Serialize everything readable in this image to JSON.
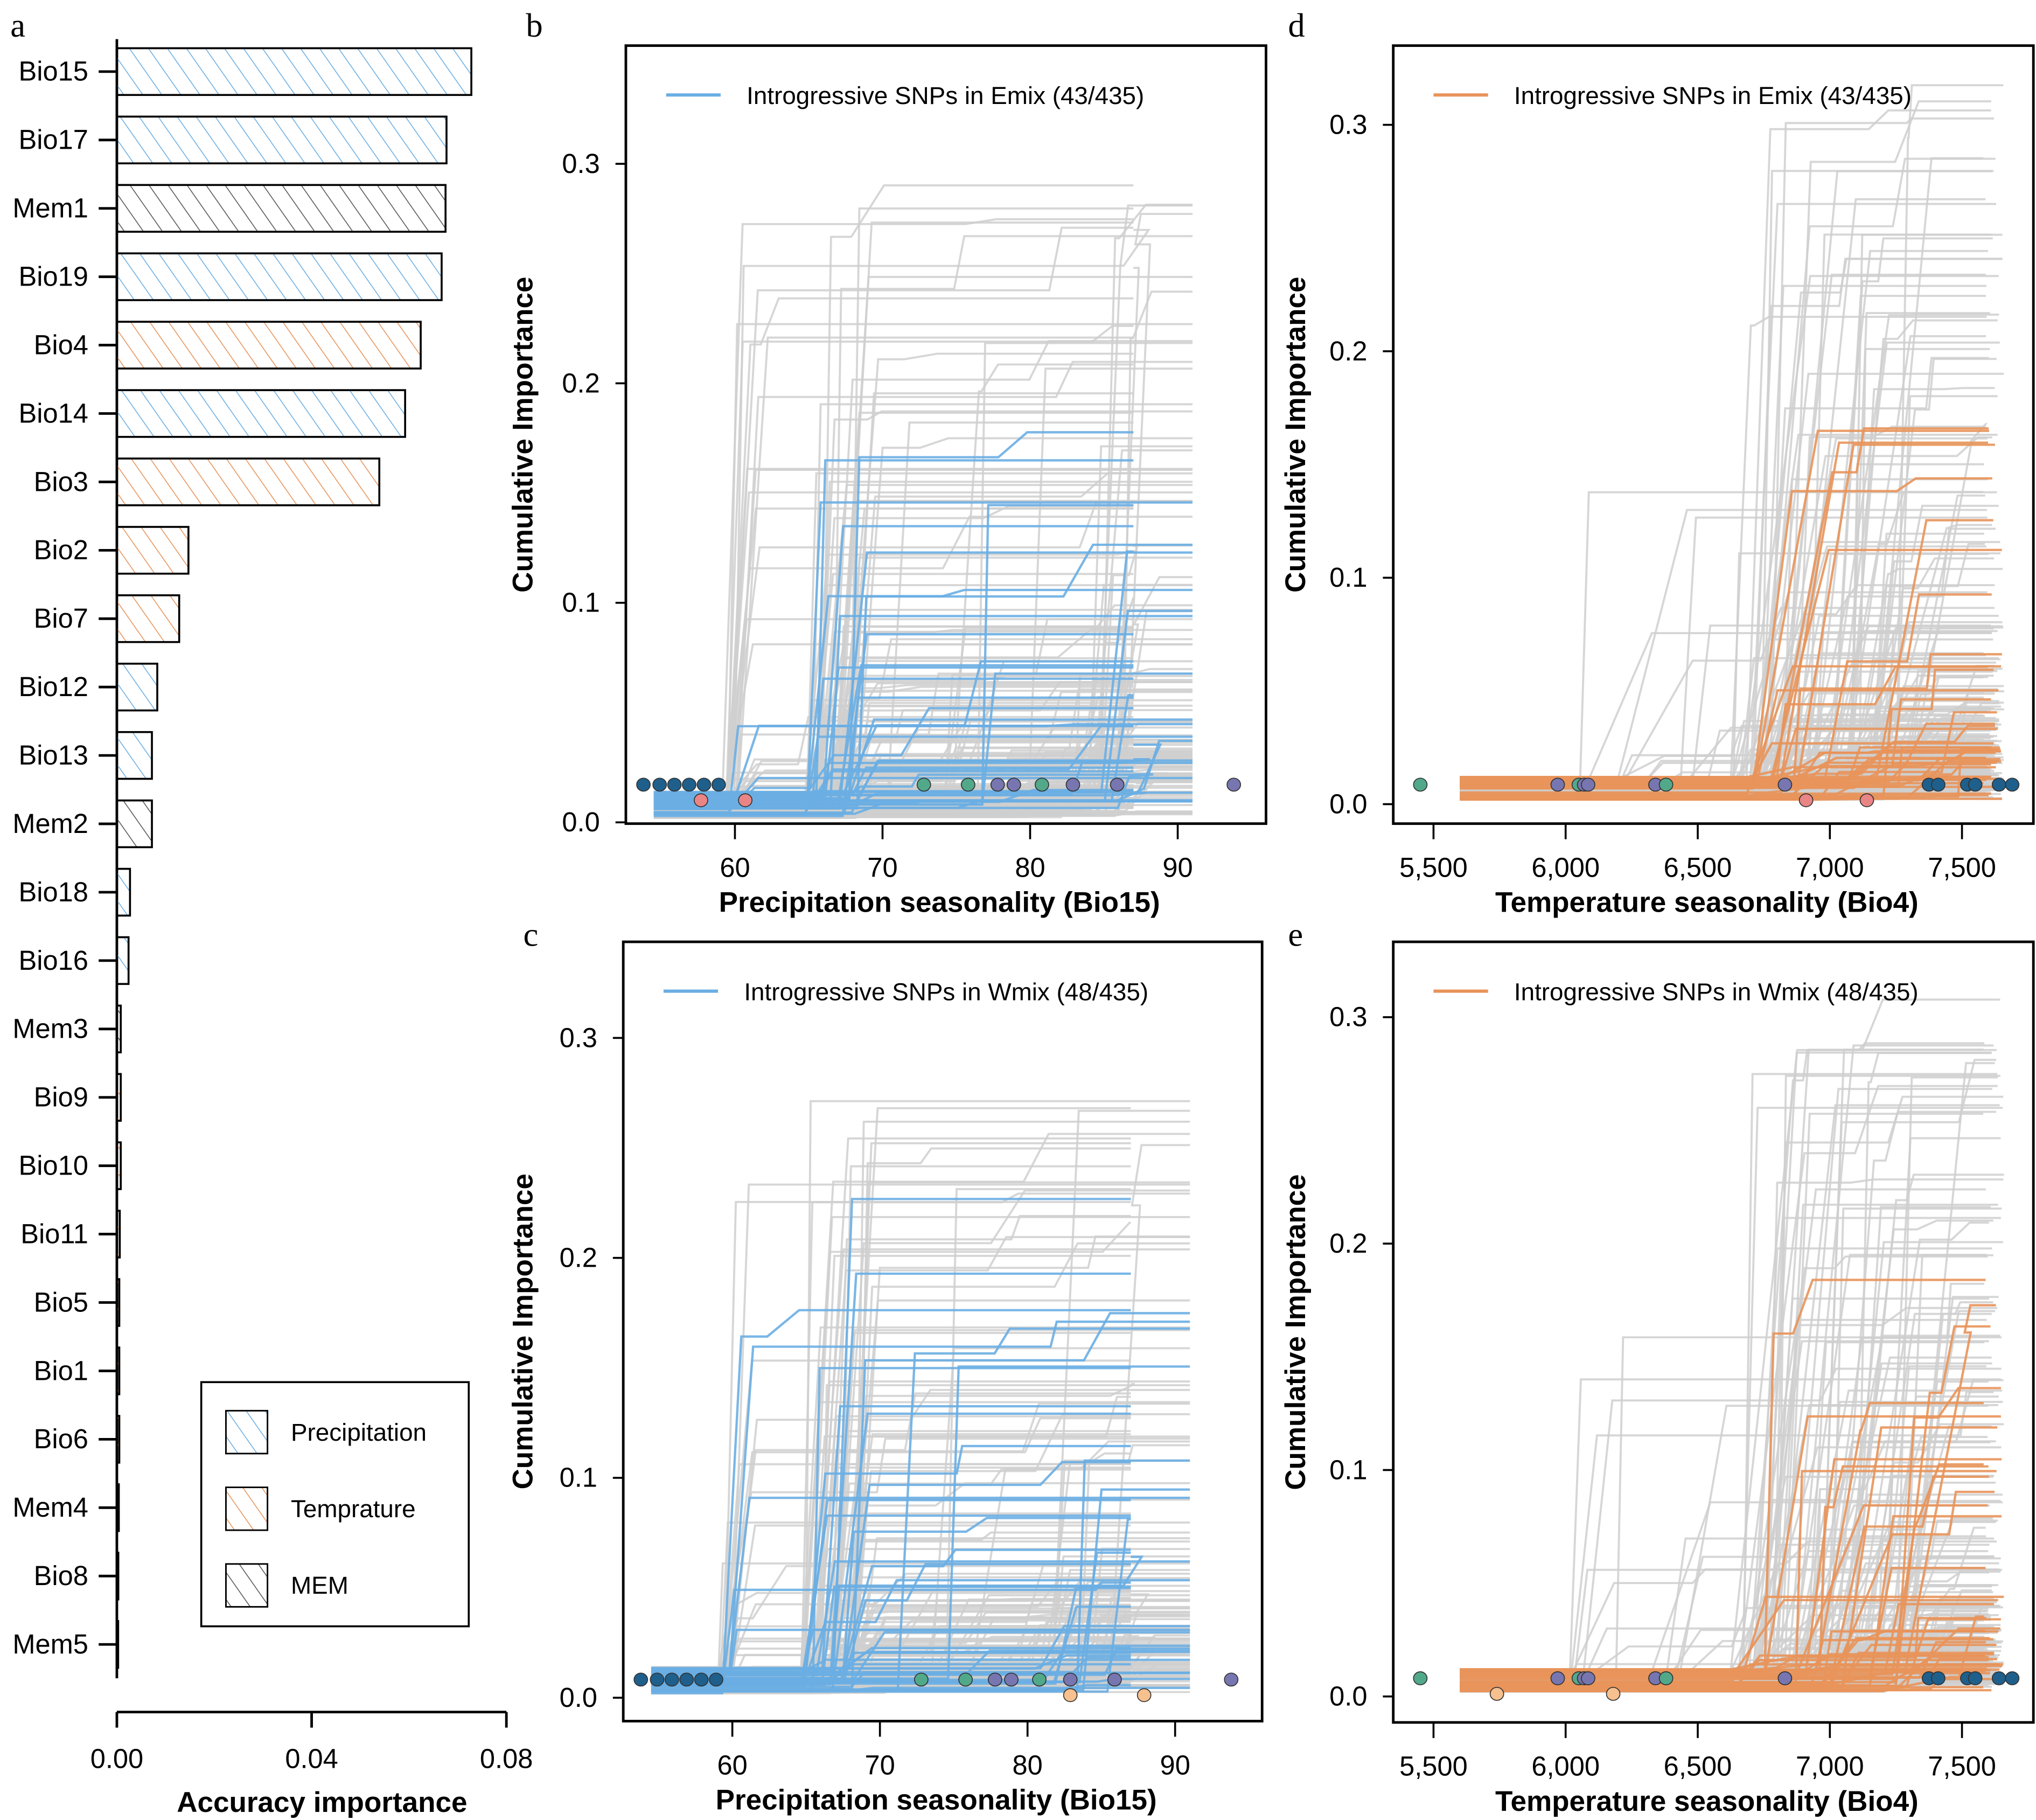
{
  "colors": {
    "precipitation": "#6aaee3",
    "temperature": "#e8935a",
    "mem": "#555555",
    "background_curve": "#cfcfcf",
    "dot_navy": "#1f5f8b",
    "dot_green": "#52a98a",
    "dot_purple": "#7876b0",
    "dot_pink": "#e98585",
    "dot_peach": "#f6c08f"
  },
  "chart_data": [
    {
      "panel": "a",
      "type": "bar",
      "orientation": "horizontal",
      "xlabel": "Accuracy importance",
      "xlim": [
        0,
        0.08
      ],
      "xticks": [
        "0.00",
        "0.04",
        "0.08"
      ],
      "xtick_values": [
        0,
        0.04,
        0.08
      ],
      "categories": [
        "Bio15",
        "Bio17",
        "Mem1",
        "Bio19",
        "Bio4",
        "Bio14",
        "Bio3",
        "Bio2",
        "Bio7",
        "Bio12",
        "Bio13",
        "Mem2",
        "Bio18",
        "Bio16",
        "Mem3",
        "Bio9",
        "Bio10",
        "Bio11",
        "Bio5",
        "Bio1",
        "Bio6",
        "Mem4",
        "Bio8",
        "Mem5"
      ],
      "values": [
        0.0728,
        0.0677,
        0.0675,
        0.0667,
        0.0624,
        0.0592,
        0.0539,
        0.0147,
        0.0128,
        0.0083,
        0.0072,
        0.0072,
        0.0027,
        0.0024,
        0.0008,
        0.0008,
        0.0008,
        0.0006,
        0.0005,
        0.0005,
        0.0005,
        0.0004,
        0.0003,
        0.0002
      ],
      "groups": [
        "precipitation",
        "precipitation",
        "mem",
        "precipitation",
        "temperature",
        "precipitation",
        "temperature",
        "temperature",
        "temperature",
        "precipitation",
        "precipitation",
        "mem",
        "precipitation",
        "precipitation",
        "mem",
        "temperature",
        "temperature",
        "temperature",
        "temperature",
        "temperature",
        "temperature",
        "mem",
        "temperature",
        "mem"
      ],
      "legend": [
        {
          "group": "precipitation",
          "label": "Precipitation"
        },
        {
          "group": "temperature",
          "label": "Temprature"
        },
        {
          "group": "mem",
          "label": "MEM"
        }
      ],
      "legend_position": "bottom-right"
    },
    {
      "panel": "b",
      "type": "line",
      "legend_label": "Introgressive SNPs in Emix (43/435)",
      "legend_position": "top-left",
      "highlight_color": "precipitation",
      "variable": "precipitation",
      "highlighted_count": 43,
      "total_count": 435,
      "xlabel": "Precipitation seasonality (Bio15)",
      "ylabel": "Cumulative Importance",
      "xlim": [
        53,
        96
      ],
      "ylim": [
        0,
        0.35
      ],
      "xticks": [
        "60",
        "70",
        "80",
        "90"
      ],
      "xtick_values": [
        60,
        70,
        80,
        90
      ],
      "yticks": [
        "0.0",
        "0.1",
        "0.2",
        "0.3"
      ],
      "ytick_values": [
        0,
        0.1,
        0.2,
        0.3
      ],
      "max_highlighted": 0.209,
      "max_background": 0.288,
      "dots": [
        {
          "x": 53.8,
          "c": "dot_navy",
          "row": 0
        },
        {
          "x": 54.9,
          "c": "dot_navy",
          "row": 0
        },
        {
          "x": 55.9,
          "c": "dot_navy",
          "row": 0
        },
        {
          "x": 56.9,
          "c": "dot_navy",
          "row": 0
        },
        {
          "x": 57.9,
          "c": "dot_navy",
          "row": 0
        },
        {
          "x": 58.9,
          "c": "dot_navy",
          "row": 0
        },
        {
          "x": 57.7,
          "c": "dot_pink",
          "row": 1
        },
        {
          "x": 60.7,
          "c": "dot_pink",
          "row": 1
        },
        {
          "x": 72.8,
          "c": "dot_green",
          "row": 0
        },
        {
          "x": 75.8,
          "c": "dot_green",
          "row": 0
        },
        {
          "x": 80.8,
          "c": "dot_green",
          "row": 0
        },
        {
          "x": 77.8,
          "c": "dot_purple",
          "row": 0
        },
        {
          "x": 78.9,
          "c": "dot_purple",
          "row": 0
        },
        {
          "x": 82.9,
          "c": "dot_purple",
          "row": 0
        },
        {
          "x": 85.9,
          "c": "dot_purple",
          "row": 0
        },
        {
          "x": 93.8,
          "c": "dot_purple",
          "row": 0
        }
      ]
    },
    {
      "panel": "c",
      "type": "line",
      "legend_label": "Introgressive SNPs in Wmix (48/435)",
      "legend_position": "top-left",
      "highlight_color": "precipitation",
      "variable": "precipitation",
      "highlighted_count": 48,
      "total_count": 435,
      "xlabel": "Precipitation seasonality (Bio15)",
      "ylabel": "Cumulative Importance",
      "xlim": [
        53,
        96
      ],
      "ylim": [
        0,
        0.35
      ],
      "xticks": [
        "60",
        "70",
        "80",
        "90"
      ],
      "xtick_values": [
        60,
        70,
        80,
        90
      ],
      "yticks": [
        "0.0",
        "0.1",
        "0.2",
        "0.3"
      ],
      "ytick_values": [
        0,
        0.1,
        0.2,
        0.3
      ],
      "max_highlighted": 0.254,
      "max_background": 0.277,
      "dots": [
        {
          "x": 53.8,
          "c": "dot_navy",
          "row": 0
        },
        {
          "x": 54.9,
          "c": "dot_navy",
          "row": 0
        },
        {
          "x": 55.9,
          "c": "dot_navy",
          "row": 0
        },
        {
          "x": 56.9,
          "c": "dot_navy",
          "row": 0
        },
        {
          "x": 57.9,
          "c": "dot_navy",
          "row": 0
        },
        {
          "x": 58.9,
          "c": "dot_navy",
          "row": 0
        },
        {
          "x": 82.9,
          "c": "dot_peach",
          "row": 1
        },
        {
          "x": 87.9,
          "c": "dot_peach",
          "row": 1
        },
        {
          "x": 72.8,
          "c": "dot_green",
          "row": 0
        },
        {
          "x": 75.8,
          "c": "dot_green",
          "row": 0
        },
        {
          "x": 80.8,
          "c": "dot_green",
          "row": 0
        },
        {
          "x": 77.8,
          "c": "dot_purple",
          "row": 0
        },
        {
          "x": 78.9,
          "c": "dot_purple",
          "row": 0
        },
        {
          "x": 82.9,
          "c": "dot_purple",
          "row": 0
        },
        {
          "x": 85.9,
          "c": "dot_purple",
          "row": 0
        },
        {
          "x": 93.8,
          "c": "dot_purple",
          "row": 0
        }
      ]
    },
    {
      "panel": "d",
      "type": "line",
      "legend_label": "Introgressive SNPs in Emix (43/435)",
      "legend_position": "top-left",
      "highlight_color": "temperature",
      "variable": "temperature",
      "highlighted_count": 43,
      "total_count": 435,
      "xlabel": "Temperature seasonality (Bio4)",
      "ylabel": "Cumulative Importance",
      "xlim": [
        5350,
        7780
      ],
      "ylim": [
        0,
        0.33
      ],
      "xticks": [
        "5,500",
        "6,000",
        "6,500",
        "7,000",
        "7,500"
      ],
      "xtick_values": [
        5500,
        6000,
        6500,
        7000,
        7500
      ],
      "yticks": [
        "0.0",
        "0.1",
        "0.2",
        "0.3"
      ],
      "ytick_values": [
        0,
        0.1,
        0.2,
        0.3
      ],
      "max_highlighted": 0.165,
      "max_background": 0.301,
      "dots": [
        {
          "x": 5450,
          "c": "dot_green",
          "row": 0
        },
        {
          "x": 5970,
          "c": "dot_purple",
          "row": 0
        },
        {
          "x": 6050,
          "c": "dot_green",
          "row": 0
        },
        {
          "x": 6070,
          "c": "dot_purple",
          "row": 0
        },
        {
          "x": 6085,
          "c": "dot_purple",
          "row": 0
        },
        {
          "x": 6340,
          "c": "dot_purple",
          "row": 0
        },
        {
          "x": 6380,
          "c": "dot_green",
          "row": 0
        },
        {
          "x": 6830,
          "c": "dot_purple",
          "row": 0
        },
        {
          "x": 6910,
          "c": "dot_pink",
          "row": 1
        },
        {
          "x": 7140,
          "c": "dot_pink",
          "row": 1
        },
        {
          "x": 7375,
          "c": "dot_navy",
          "row": 0
        },
        {
          "x": 7410,
          "c": "dot_navy",
          "row": 0
        },
        {
          "x": 7520,
          "c": "dot_navy",
          "row": 0
        },
        {
          "x": 7550,
          "c": "dot_navy",
          "row": 0
        },
        {
          "x": 7640,
          "c": "dot_navy",
          "row": 0
        },
        {
          "x": 7690,
          "c": "dot_navy",
          "row": 0
        }
      ]
    },
    {
      "panel": "e",
      "type": "line",
      "legend_label": "Introgressive SNPs in Wmix (48/435)",
      "legend_position": "top-left",
      "highlight_color": "temperature",
      "variable": "temperature",
      "highlighted_count": 48,
      "total_count": 435,
      "xlabel": "Temperature seasonality (Bio4)",
      "ylabel": "Cumulative Importance",
      "xlim": [
        5350,
        7780
      ],
      "ylim": [
        0,
        0.33
      ],
      "xticks": [
        "5,500",
        "6,000",
        "6,500",
        "7,000",
        "7,500"
      ],
      "xtick_values": [
        5500,
        6000,
        6500,
        7000,
        7500
      ],
      "yticks": [
        "0.0",
        "0.1",
        "0.2",
        "0.3"
      ],
      "ytick_values": [
        0,
        0.1,
        0.2,
        0.3
      ],
      "max_highlighted": 0.163,
      "max_background": 0.301,
      "dots": [
        {
          "x": 5450,
          "c": "dot_green",
          "row": 0
        },
        {
          "x": 5740,
          "c": "dot_peach",
          "row": 1
        },
        {
          "x": 6180,
          "c": "dot_peach",
          "row": 1
        },
        {
          "x": 5970,
          "c": "dot_purple",
          "row": 0
        },
        {
          "x": 6050,
          "c": "dot_green",
          "row": 0
        },
        {
          "x": 6070,
          "c": "dot_purple",
          "row": 0
        },
        {
          "x": 6085,
          "c": "dot_purple",
          "row": 0
        },
        {
          "x": 6340,
          "c": "dot_purple",
          "row": 0
        },
        {
          "x": 6380,
          "c": "dot_green",
          "row": 0
        },
        {
          "x": 6830,
          "c": "dot_purple",
          "row": 0
        },
        {
          "x": 7375,
          "c": "dot_navy",
          "row": 0
        },
        {
          "x": 7410,
          "c": "dot_navy",
          "row": 0
        },
        {
          "x": 7520,
          "c": "dot_navy",
          "row": 0
        },
        {
          "x": 7550,
          "c": "dot_navy",
          "row": 0
        },
        {
          "x": 7640,
          "c": "dot_navy",
          "row": 0
        },
        {
          "x": 7690,
          "c": "dot_navy",
          "row": 0
        }
      ]
    }
  ]
}
